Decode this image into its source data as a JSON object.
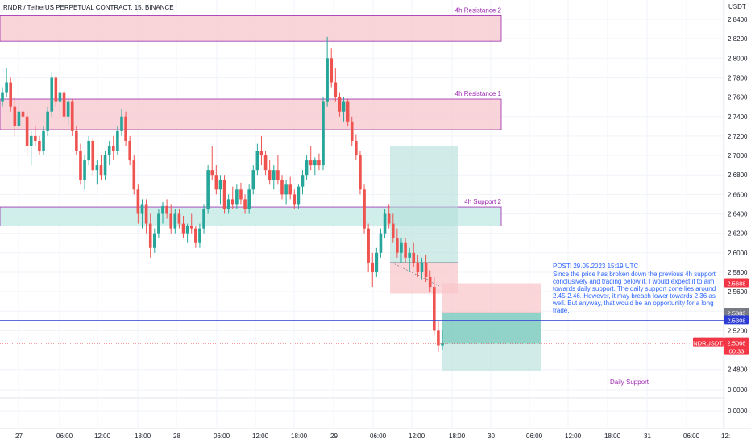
{
  "header": {
    "title": "RNDR / TetherUS PERPETUAL CONTRACT, 15, BINANCE",
    "currency": "USDT"
  },
  "colors": {
    "up": "#26a69a",
    "down": "#ef5350",
    "resistance_fill": "#f8cdd2",
    "resistance_border": "#9c27b0",
    "support_fill": "#c8ebe6",
    "label_purple": "#9c27b0",
    "note_blue": "#2962ff",
    "hline_blue": "#2b3bd4",
    "price_red": "#f23645",
    "grid": "#f0f3fa"
  },
  "chart_data": {
    "type": "candlestick",
    "symbol": "RNDRUSDT.P",
    "interval": "15",
    "y_ticks": [
      "2.8400",
      "2.8200",
      "2.8000",
      "2.7800",
      "2.7600",
      "2.7400",
      "2.7200",
      "2.7000",
      "2.6800",
      "2.6600",
      "2.6400",
      "2.6200",
      "2.6000",
      "2.5800",
      "2.5600",
      "2.5400",
      "2.5200",
      "2.5000",
      "2.4800",
      "0.0000",
      "0.0000"
    ],
    "x_ticks": [
      "27",
      "06:00",
      "12:00",
      "18:00",
      "28",
      "06:00",
      "12:00",
      "18:00",
      "29",
      "06:00",
      "12:00",
      "18:00",
      "30",
      "06:00",
      "12:00",
      "18:00",
      "31",
      "06:00",
      "12:"
    ],
    "zones": [
      {
        "label": "4h Resistance 2",
        "kind": "resistance",
        "low": 2.8175,
        "high": 2.8438
      },
      {
        "label": "4h Resistance 1",
        "kind": "resistance",
        "low": 2.7265,
        "high": 2.758
      },
      {
        "label": "4h Support 2",
        "kind": "support",
        "low": 2.6275,
        "high": 2.647
      }
    ],
    "long_position": {
      "entry": 2.59,
      "target": 2.71,
      "stop": 2.558
    },
    "short_position": {
      "entry": 2.5383,
      "stop": 2.5688,
      "target": 2.479
    },
    "horizontal_line": 2.5308,
    "price_labels": [
      {
        "text": "2.5688",
        "color": "#f23645"
      },
      {
        "text": "2.5383",
        "color": "#787b86"
      },
      {
        "text": "2.5308",
        "color": "#2b3bd4"
      },
      {
        "text": "RNDRUSDT.P",
        "color": "#f23645"
      },
      {
        "text": "2.5066",
        "color": "#f23645"
      },
      {
        "text": "00:33",
        "color": "#f23645"
      }
    ],
    "last_price": 2.5066,
    "daily_support_label": "Daily Support",
    "candles": [
      [
        2.755,
        2.77,
        2.75,
        2.765
      ],
      [
        2.765,
        2.79,
        2.76,
        2.775
      ],
      [
        2.775,
        2.78,
        2.745,
        2.75
      ],
      [
        2.75,
        2.76,
        2.72,
        2.73
      ],
      [
        2.73,
        2.755,
        2.725,
        2.745
      ],
      [
        2.745,
        2.76,
        2.735,
        2.74
      ],
      [
        2.74,
        2.745,
        2.7,
        2.71
      ],
      [
        2.71,
        2.725,
        2.69,
        2.72
      ],
      [
        2.72,
        2.73,
        2.71,
        2.715
      ],
      [
        2.715,
        2.72,
        2.7,
        2.705
      ],
      [
        2.705,
        2.73,
        2.7,
        2.725
      ],
      [
        2.725,
        2.75,
        2.72,
        2.745
      ],
      [
        2.745,
        2.785,
        2.74,
        2.78
      ],
      [
        2.78,
        2.782,
        2.75,
        2.755
      ],
      [
        2.755,
        2.77,
        2.74,
        2.765
      ],
      [
        2.765,
        2.77,
        2.735,
        2.74
      ],
      [
        2.74,
        2.76,
        2.73,
        2.755
      ],
      [
        2.755,
        2.758,
        2.72,
        2.725
      ],
      [
        2.725,
        2.73,
        2.7,
        2.705
      ],
      [
        2.705,
        2.712,
        2.67,
        2.675
      ],
      [
        2.675,
        2.7,
        2.665,
        2.695
      ],
      [
        2.695,
        2.72,
        2.69,
        2.715
      ],
      [
        2.715,
        2.718,
        2.68,
        2.685
      ],
      [
        2.685,
        2.695,
        2.67,
        2.69
      ],
      [
        2.69,
        2.7,
        2.675,
        2.68
      ],
      [
        2.68,
        2.705,
        2.675,
        2.7
      ],
      [
        2.7,
        2.715,
        2.69,
        2.71
      ],
      [
        2.71,
        2.72,
        2.695,
        2.705
      ],
      [
        2.705,
        2.73,
        2.7,
        2.725
      ],
      [
        2.725,
        2.748,
        2.72,
        2.74
      ],
      [
        2.74,
        2.745,
        2.71,
        2.715
      ],
      [
        2.715,
        2.72,
        2.69,
        2.695
      ],
      [
        2.695,
        2.7,
        2.66,
        2.665
      ],
      [
        2.665,
        2.67,
        2.63,
        2.64
      ],
      [
        2.64,
        2.655,
        2.625,
        2.65
      ],
      [
        2.65,
        2.655,
        2.62,
        2.63
      ],
      [
        2.63,
        2.64,
        2.595,
        2.605
      ],
      [
        2.605,
        2.625,
        2.6,
        2.62
      ],
      [
        2.62,
        2.645,
        2.615,
        2.64
      ],
      [
        2.64,
        2.652,
        2.63,
        2.648
      ],
      [
        2.648,
        2.655,
        2.635,
        2.64
      ],
      [
        2.64,
        2.65,
        2.62,
        2.625
      ],
      [
        2.625,
        2.645,
        2.62,
        2.64
      ],
      [
        2.64,
        2.645,
        2.625,
        2.63
      ],
      [
        2.63,
        2.638,
        2.615,
        2.62
      ],
      [
        2.62,
        2.63,
        2.61,
        2.628
      ],
      [
        2.628,
        2.64,
        2.62,
        2.625
      ],
      [
        2.625,
        2.628,
        2.605,
        2.61
      ],
      [
        2.61,
        2.63,
        2.605,
        2.625
      ],
      [
        2.625,
        2.65,
        2.62,
        2.645
      ],
      [
        2.645,
        2.69,
        2.64,
        2.685
      ],
      [
        2.685,
        2.71,
        2.675,
        2.68
      ],
      [
        2.68,
        2.69,
        2.66,
        2.665
      ],
      [
        2.665,
        2.68,
        2.65,
        2.675
      ],
      [
        2.675,
        2.68,
        2.64,
        2.645
      ],
      [
        2.645,
        2.66,
        2.64,
        2.655
      ],
      [
        2.655,
        2.668,
        2.645,
        2.65
      ],
      [
        2.65,
        2.67,
        2.645,
        2.665
      ],
      [
        2.665,
        2.672,
        2.65,
        2.655
      ],
      [
        2.655,
        2.66,
        2.64,
        2.645
      ],
      [
        2.645,
        2.67,
        2.64,
        2.665
      ],
      [
        2.665,
        2.69,
        2.66,
        2.685
      ],
      [
        2.685,
        2.712,
        2.68,
        2.705
      ],
      [
        2.705,
        2.72,
        2.69,
        2.7
      ],
      [
        2.7,
        2.705,
        2.68,
        2.685
      ],
      [
        2.685,
        2.695,
        2.67,
        2.675
      ],
      [
        2.675,
        2.69,
        2.665,
        2.685
      ],
      [
        2.685,
        2.7,
        2.67,
        2.675
      ],
      [
        2.675,
        2.68,
        2.655,
        2.66
      ],
      [
        2.66,
        2.675,
        2.65,
        2.67
      ],
      [
        2.67,
        2.678,
        2.655,
        2.66
      ],
      [
        2.66,
        2.665,
        2.645,
        2.65
      ],
      [
        2.65,
        2.67,
        2.645,
        2.668
      ],
      [
        2.668,
        2.685,
        2.66,
        2.68
      ],
      [
        2.68,
        2.7,
        2.675,
        2.695
      ],
      [
        2.695,
        2.71,
        2.685,
        2.69
      ],
      [
        2.69,
        2.698,
        2.68,
        2.695
      ],
      [
        2.695,
        2.702,
        2.685,
        2.69
      ],
      [
        2.69,
        2.76,
        2.685,
        2.755
      ],
      [
        2.755,
        2.822,
        2.75,
        2.8
      ],
      [
        2.8,
        2.81,
        2.77,
        2.775
      ],
      [
        2.775,
        2.79,
        2.755,
        2.76
      ],
      [
        2.76,
        2.765,
        2.74,
        2.745
      ],
      [
        2.745,
        2.76,
        2.735,
        2.755
      ],
      [
        2.755,
        2.758,
        2.73,
        2.735
      ],
      [
        2.735,
        2.74,
        2.71,
        2.715
      ],
      [
        2.715,
        2.722,
        2.695,
        2.7
      ],
      [
        2.7,
        2.705,
        2.66,
        2.665
      ],
      [
        2.665,
        2.67,
        2.62,
        2.625
      ],
      [
        2.625,
        2.63,
        2.58,
        2.59
      ],
      [
        2.59,
        2.6,
        2.565,
        2.58
      ],
      [
        2.58,
        2.605,
        2.575,
        2.6
      ],
      [
        2.6,
        2.625,
        2.595,
        2.62
      ],
      [
        2.62,
        2.645,
        2.615,
        2.64
      ],
      [
        2.64,
        2.65,
        2.625,
        2.63
      ],
      [
        2.63,
        2.64,
        2.61,
        2.615
      ],
      [
        2.615,
        2.625,
        2.595,
        2.6
      ],
      [
        2.6,
        2.615,
        2.59,
        2.61
      ],
      [
        2.61,
        2.615,
        2.59,
        2.595
      ],
      [
        2.595,
        2.605,
        2.58,
        2.6
      ],
      [
        2.6,
        2.61,
        2.585,
        2.59
      ],
      [
        2.59,
        2.598,
        2.575,
        2.58
      ],
      [
        2.58,
        2.595,
        2.572,
        2.59
      ],
      [
        2.59,
        2.598,
        2.57,
        2.575
      ],
      [
        2.575,
        2.582,
        2.56,
        2.565
      ],
      [
        2.565,
        2.575,
        2.515,
        2.52
      ],
      [
        2.52,
        2.53,
        2.498,
        2.505
      ],
      [
        2.505,
        2.52,
        2.5,
        2.507
      ]
    ]
  },
  "note": {
    "lines": [
      "POST: 29.05.2023 15:19 UTC",
      "Since the price has broken down the previous 4h support",
      "conclusively and trading below it, I would expect it to aim",
      "towards daily support. The daily support zone lies around",
      "2.45-2.46. However, it may breach lower towards 2.36 as",
      "well. But anyway, that would be an opportunity for a long",
      "trade."
    ]
  }
}
